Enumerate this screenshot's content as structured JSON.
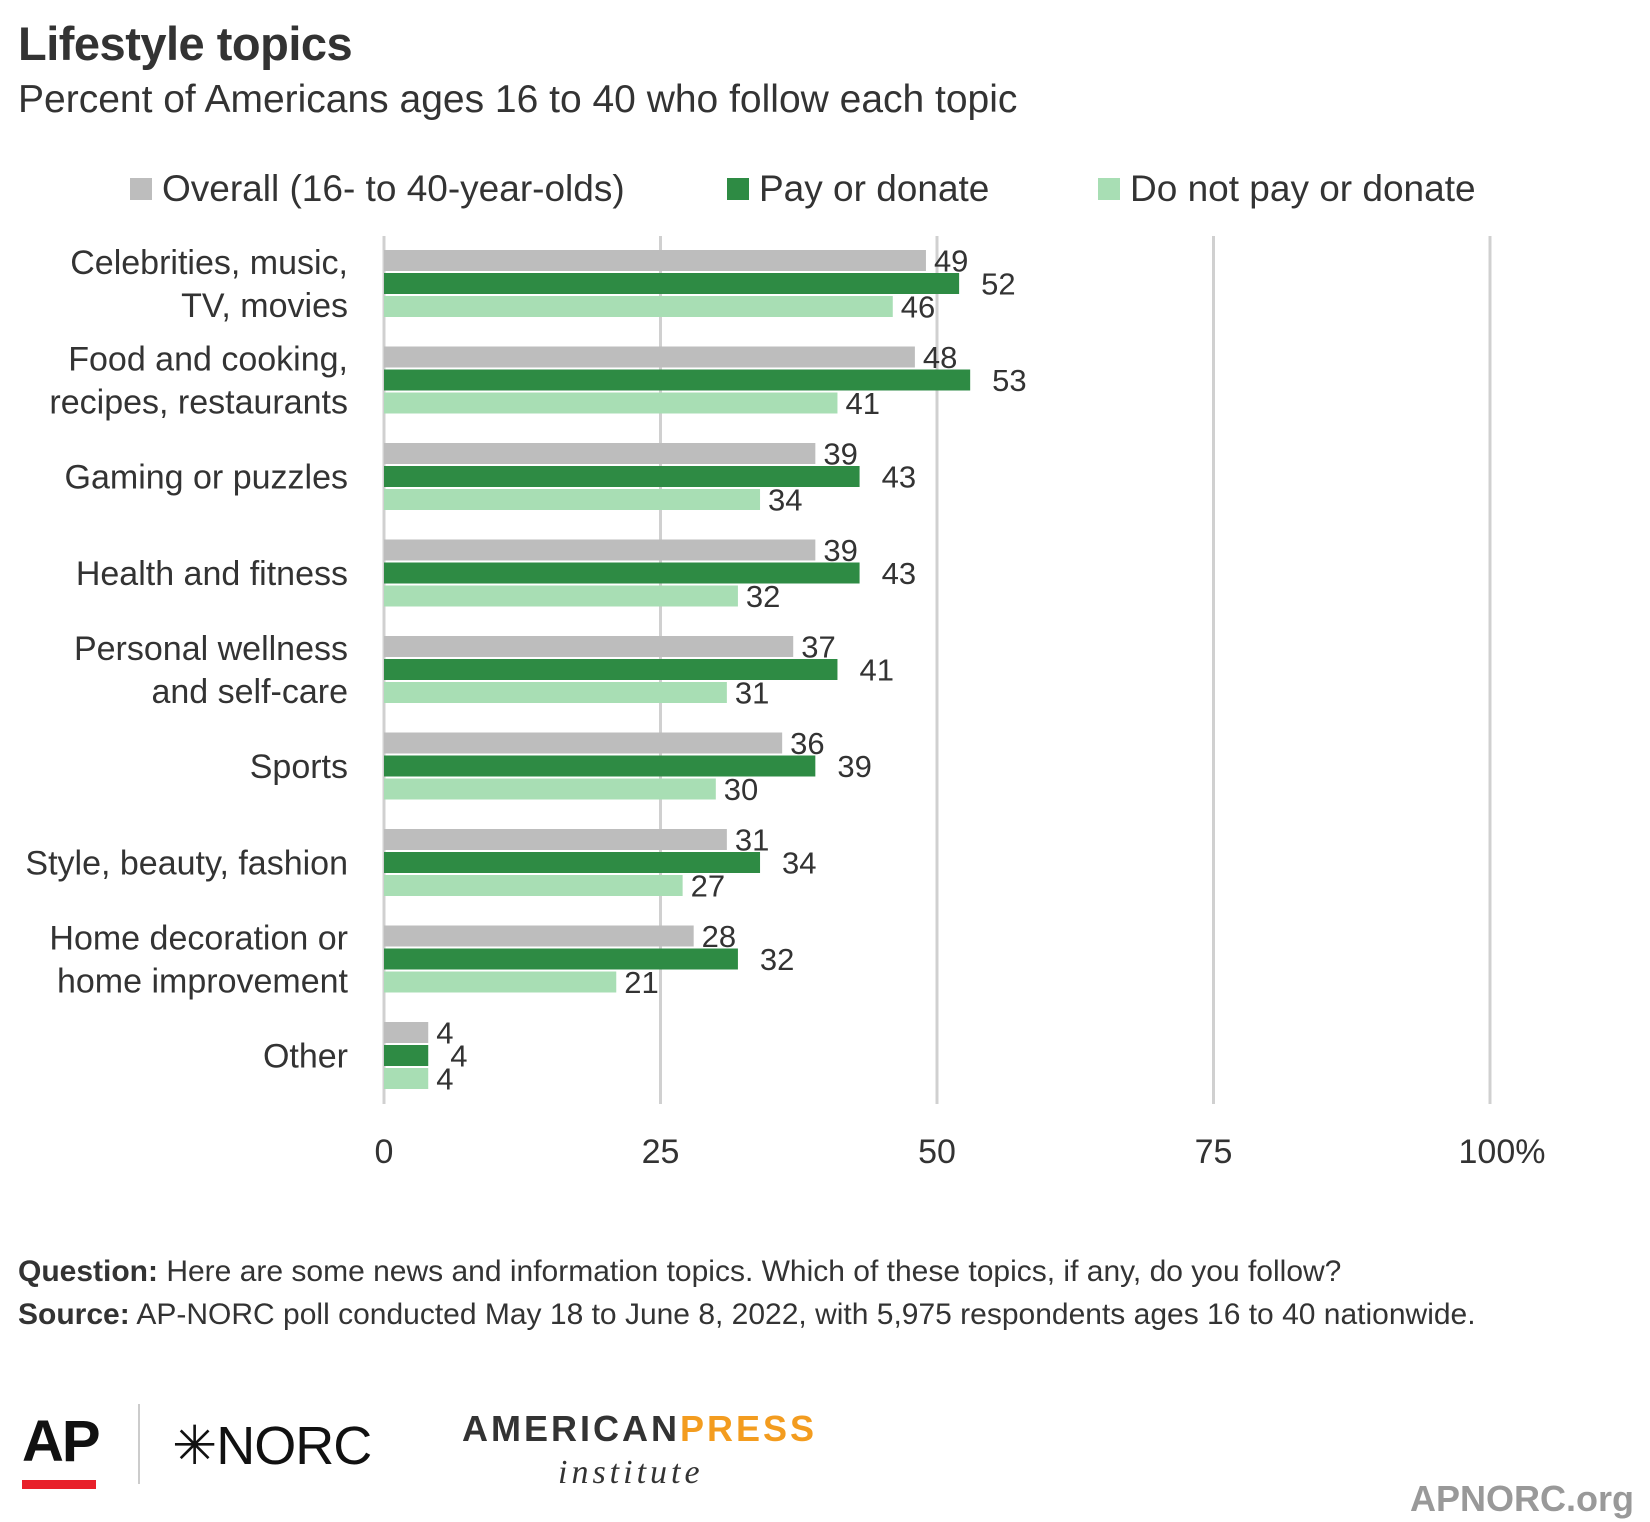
{
  "header": {
    "title": "Lifestyle topics",
    "subtitle": "Percent of Americans ages 16 to 40 who follow each topic"
  },
  "chart_data": {
    "type": "bar",
    "orientation": "horizontal",
    "title": "Lifestyle topics",
    "subtitle": "Percent of Americans ages 16 to 40 who follow each topic",
    "categories": [
      [
        "Celebrities, music,",
        "TV, movies"
      ],
      [
        "Food and cooking,",
        "recipes, restaurants"
      ],
      [
        "Gaming or puzzles"
      ],
      [
        "Health and fitness"
      ],
      [
        "Personal wellness",
        "and self-care"
      ],
      [
        "Sports"
      ],
      [
        "Style, beauty, fashion"
      ],
      [
        "Home decoration or",
        "home improvement"
      ],
      [
        "Other"
      ]
    ],
    "series": [
      {
        "name": "Overall (16- to 40-year-olds)",
        "color": "#bdbdbd",
        "values": [
          49,
          48,
          39,
          39,
          37,
          36,
          31,
          28,
          4
        ]
      },
      {
        "name": "Pay or donate",
        "color": "#2e8b44",
        "values": [
          52,
          53,
          43,
          43,
          41,
          39,
          34,
          32,
          4
        ]
      },
      {
        "name": "Do not pay or donate",
        "color": "#a8deb4",
        "values": [
          46,
          41,
          34,
          32,
          31,
          30,
          27,
          21,
          4
        ]
      }
    ],
    "xlim": [
      0,
      100
    ],
    "x_ticks": [
      "0",
      "25",
      "50",
      "75",
      "100%"
    ],
    "x_tick_values": [
      0,
      25,
      50,
      75,
      100
    ],
    "grid": true,
    "legend_position": "top"
  },
  "notes": {
    "question_label": "Question:",
    "question_text": " Here are some news and information topics. Which of these topics, if any, do you follow?",
    "source_label": "Source:",
    "source_text": " AP-NORC poll conducted May 18 to June 8, 2022, with 5,975 respondents ages 16 to 40 nationwide."
  },
  "footer": {
    "logo_ap": "AP",
    "logo_norc": "✳NORC",
    "logo_api_american": "AMERICAN",
    "logo_api_press": "PRESS",
    "logo_api_institute": "institute",
    "site": "APNORC.org"
  }
}
